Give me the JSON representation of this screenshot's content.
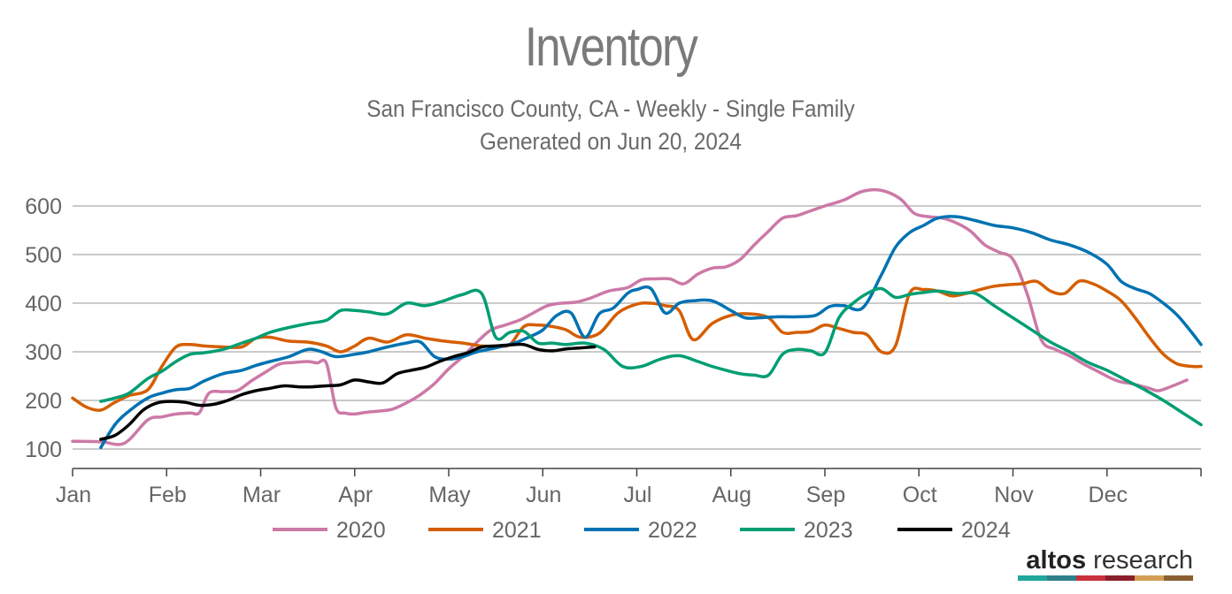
{
  "chart_data": {
    "type": "line",
    "title": "Inventory",
    "subtitle": [
      "San Francisco County, CA - Weekly - Single Family",
      "Generated on Jun 20, 2024"
    ],
    "xlabel": "",
    "ylabel": "",
    "x_ticks": [
      "Jan",
      "Feb",
      "Mar",
      "Apr",
      "May",
      "Jun",
      "Jul",
      "Aug",
      "Sep",
      "Oct",
      "Nov",
      "Dec"
    ],
    "y_ticks": [
      100,
      200,
      300,
      400,
      500,
      600
    ],
    "ylim": [
      60,
      660
    ],
    "xlim": [
      0,
      12
    ],
    "grid": "horizontal",
    "legend_position": "bottom",
    "series": [
      {
        "name": "2020",
        "color": "#cc79a7",
        "x": [
          0,
          0.3,
          0.55,
          0.8,
          0.95,
          1.1,
          1.25,
          1.35,
          1.45,
          1.6,
          1.75,
          1.9,
          2.05,
          2.2,
          2.35,
          2.5,
          2.6,
          2.7,
          2.8,
          2.9,
          3.0,
          3.1,
          3.25,
          3.4,
          3.55,
          3.7,
          3.85,
          4.0,
          4.15,
          4.3,
          4.45,
          4.6,
          4.75,
          4.9,
          5.05,
          5.2,
          5.35,
          5.5,
          5.7,
          5.9,
          6.05,
          6.2,
          6.35,
          6.5,
          6.65,
          6.8,
          6.95,
          7.1,
          7.25,
          7.4,
          7.55,
          7.7,
          7.85,
          8.0,
          8.2,
          8.4,
          8.6,
          8.8,
          8.95,
          9.1,
          9.25,
          9.4,
          9.55,
          9.7,
          9.85,
          10.0,
          10.15,
          10.3,
          10.45,
          10.6,
          10.75,
          10.85,
          10.95,
          11.05,
          11.15,
          11.25,
          11.35,
          11.45,
          11.55,
          11.7,
          11.85
        ],
        "values": [
          116,
          115,
          112,
          160,
          166,
          172,
          174,
          175,
          215,
          218,
          220,
          240,
          258,
          275,
          278,
          280,
          277,
          276,
          185,
          174,
          172,
          175,
          178,
          182,
          195,
          212,
          235,
          265,
          290,
          320,
          345,
          355,
          365,
          380,
          395,
          400,
          402,
          410,
          425,
          432,
          448,
          450,
          450,
          440,
          460,
          472,
          475,
          490,
          520,
          548,
          575,
          580,
          590,
          600,
          612,
          630,
          632,
          615,
          585,
          578,
          575,
          565,
          548,
          520,
          505,
          490,
          420,
          325,
          305,
          292,
          275,
          265,
          255,
          245,
          238,
          235,
          230,
          225,
          220,
          230,
          242
        ]
      },
      {
        "name": "2021",
        "color": "#d55e00",
        "x": [
          0,
          0.15,
          0.3,
          0.45,
          0.6,
          0.8,
          0.95,
          1.1,
          1.25,
          1.4,
          1.6,
          1.8,
          1.95,
          2.1,
          2.3,
          2.5,
          2.7,
          2.85,
          3.0,
          3.15,
          3.35,
          3.55,
          3.75,
          3.95,
          4.15,
          4.35,
          4.5,
          4.65,
          4.8,
          4.95,
          5.1,
          5.25,
          5.4,
          5.6,
          5.8,
          6.0,
          6.15,
          6.3,
          6.45,
          6.6,
          6.8,
          7.0,
          7.2,
          7.4,
          7.55,
          7.7,
          7.85,
          8.0,
          8.15,
          8.3,
          8.45,
          8.6,
          8.75,
          8.9,
          9.05,
          9.2,
          9.35,
          9.5,
          9.65,
          9.8,
          9.95,
          10.1,
          10.25,
          10.4,
          10.55,
          10.7,
          10.85,
          11.0,
          11.15,
          11.3,
          11.45,
          11.6,
          11.75,
          11.9,
          12.0
        ],
        "values": [
          205,
          186,
          180,
          196,
          210,
          222,
          270,
          310,
          315,
          312,
          310,
          310,
          328,
          330,
          322,
          320,
          312,
          300,
          312,
          328,
          320,
          335,
          328,
          322,
          318,
          312,
          312,
          315,
          352,
          355,
          352,
          345,
          330,
          338,
          380,
          398,
          400,
          395,
          385,
          325,
          358,
          375,
          378,
          370,
          340,
          340,
          342,
          355,
          348,
          340,
          335,
          300,
          312,
          420,
          428,
          425,
          415,
          420,
          428,
          435,
          438,
          440,
          445,
          425,
          420,
          445,
          440,
          425,
          405,
          370,
          330,
          295,
          275,
          270,
          270
        ]
      },
      {
        "name": "2022",
        "color": "#0072b2",
        "x": [
          0.3,
          0.45,
          0.6,
          0.8,
          0.95,
          1.1,
          1.25,
          1.4,
          1.6,
          1.8,
          1.95,
          2.1,
          2.3,
          2.5,
          2.65,
          2.8,
          3.0,
          3.15,
          3.35,
          3.55,
          3.7,
          3.85,
          4.0,
          4.15,
          4.3,
          4.5,
          4.7,
          4.85,
          5.0,
          5.15,
          5.3,
          5.45,
          5.6,
          5.75,
          5.9,
          6.0,
          6.15,
          6.3,
          6.45,
          6.6,
          6.8,
          7.0,
          7.15,
          7.3,
          7.5,
          7.7,
          7.9,
          8.05,
          8.2,
          8.4,
          8.6,
          8.75,
          8.9,
          9.05,
          9.2,
          9.4,
          9.6,
          9.8,
          10.0,
          10.2,
          10.4,
          10.6,
          10.8,
          11.0,
          11.15,
          11.3,
          11.45,
          11.6,
          11.75,
          11.9,
          12.0
        ],
        "values": [
          103,
          150,
          178,
          205,
          215,
          222,
          225,
          240,
          255,
          262,
          272,
          280,
          290,
          305,
          300,
          290,
          295,
          300,
          310,
          318,
          320,
          290,
          285,
          290,
          300,
          308,
          318,
          330,
          345,
          375,
          380,
          330,
          378,
          390,
          420,
          428,
          430,
          380,
          400,
          405,
          405,
          385,
          370,
          370,
          372,
          372,
          375,
          393,
          395,
          390,
          458,
          515,
          545,
          560,
          575,
          578,
          570,
          560,
          555,
          545,
          530,
          520,
          505,
          480,
          445,
          430,
          420,
          400,
          375,
          340,
          315
        ]
      },
      {
        "name": "2023",
        "color": "#009e73",
        "x": [
          0.3,
          0.45,
          0.6,
          0.8,
          0.95,
          1.1,
          1.25,
          1.4,
          1.6,
          1.8,
          1.95,
          2.1,
          2.3,
          2.5,
          2.7,
          2.85,
          3.0,
          3.15,
          3.35,
          3.55,
          3.75,
          3.95,
          4.15,
          4.35,
          4.5,
          4.65,
          4.8,
          4.95,
          5.1,
          5.25,
          5.45,
          5.65,
          5.85,
          6.05,
          6.25,
          6.45,
          6.65,
          6.8,
          6.95,
          7.1,
          7.25,
          7.4,
          7.55,
          7.7,
          7.85,
          8.0,
          8.15,
          8.3,
          8.45,
          8.6,
          8.75,
          8.9,
          9.05,
          9.2,
          9.4,
          9.6,
          9.8,
          10.0,
          10.2,
          10.4,
          10.6,
          10.8,
          11.0,
          11.2,
          11.4,
          11.6,
          11.8,
          12.0
        ],
        "values": [
          198,
          205,
          215,
          245,
          260,
          280,
          295,
          298,
          305,
          318,
          328,
          340,
          350,
          358,
          365,
          385,
          385,
          382,
          378,
          400,
          395,
          405,
          418,
          420,
          330,
          340,
          342,
          318,
          318,
          315,
          318,
          305,
          270,
          270,
          285,
          292,
          280,
          270,
          262,
          255,
          252,
          252,
          295,
          305,
          302,
          298,
          370,
          400,
          420,
          430,
          412,
          418,
          422,
          425,
          420,
          420,
          395,
          370,
          345,
          320,
          300,
          278,
          262,
          242,
          222,
          200,
          175,
          150
        ]
      },
      {
        "name": "2024",
        "color": "#000000",
        "x": [
          0.3,
          0.45,
          0.6,
          0.75,
          0.9,
          1.05,
          1.2,
          1.35,
          1.5,
          1.65,
          1.8,
          1.95,
          2.1,
          2.25,
          2.4,
          2.55,
          2.7,
          2.85,
          3.0,
          3.15,
          3.3,
          3.45,
          3.6,
          3.75,
          3.9,
          4.05,
          4.2,
          4.35,
          4.5,
          4.65,
          4.8,
          4.95,
          5.1,
          5.25,
          5.4,
          5.55
        ],
        "values": [
          120,
          128,
          150,
          180,
          195,
          198,
          196,
          190,
          192,
          200,
          212,
          220,
          225,
          230,
          228,
          228,
          230,
          232,
          242,
          238,
          236,
          255,
          262,
          268,
          280,
          290,
          298,
          310,
          312,
          314,
          315,
          305,
          302,
          306,
          308,
          310
        ]
      }
    ],
    "legend": [
      "2020",
      "2021",
      "2022",
      "2023",
      "2024"
    ]
  },
  "brand": {
    "bold": "altos",
    "rest": " research"
  },
  "brand_colors": [
    "#20a79a",
    "#2f7f8a",
    "#c9303b",
    "#8b1e2b",
    "#d39e53",
    "#8a6032"
  ]
}
